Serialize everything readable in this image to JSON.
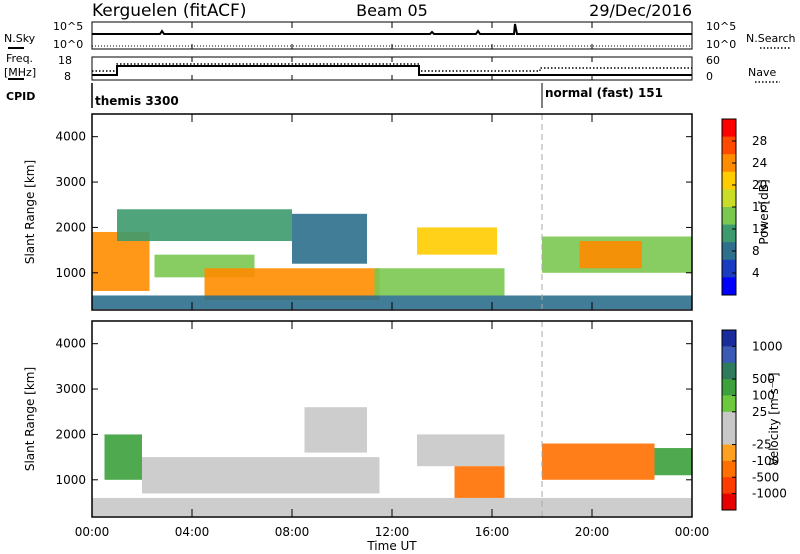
{
  "header": {
    "station": "Kerguelen (fitACF)",
    "beam": "Beam 05",
    "date": "29/Dec/2016"
  },
  "status_panels": {
    "nsky_label": "N.Sky",
    "nsky_ticks": [
      "10^5",
      "10^0"
    ],
    "nsearch_label": "N.Search",
    "nsearch_ticks": [
      "10^5",
      "10^0"
    ],
    "freq_label_1": "Freq.",
    "freq_label_2": "[MHz]",
    "freq_ticks": [
      "18",
      "8"
    ],
    "nave_label": "Nave",
    "nave_ticks": [
      "60",
      "0"
    ],
    "cpid_label": "CPID",
    "cpid_segments": [
      {
        "name": "themis 3300",
        "start_hour": 0
      },
      {
        "name": "normal (fast) 151",
        "start_hour": 18
      }
    ]
  },
  "axes": {
    "x_label": "Time UT",
    "x_ticks": [
      "00:00",
      "04:00",
      "08:00",
      "12:00",
      "16:00",
      "20:00",
      "00:00"
    ],
    "y_label": "Slant Range [km]",
    "y_ticks": [
      "4000",
      "3000",
      "2000",
      "1000"
    ]
  },
  "power_colorbar": {
    "label": "Power [dB]",
    "ticks": [
      "28",
      "24",
      "20",
      "16",
      "12",
      "8",
      "4"
    ],
    "colors": [
      "#ff0000",
      "#ff4a00",
      "#ff8c00",
      "#ffcc00",
      "#c8dc28",
      "#7ac850",
      "#3c9a6e",
      "#2d6f8c",
      "#1a3cc0",
      "#0000ff"
    ]
  },
  "velocity_colorbar": {
    "label": "Velocity [m s⁻¹]",
    "ticks": [
      "1000",
      "500",
      "100",
      "25",
      "-25",
      "-100",
      "-500",
      "-1000"
    ],
    "colors": [
      "#1a2c9c",
      "#3a5ab4",
      "#2e7a5c",
      "#3ca03c",
      "#6cc83c",
      "#c8c8c8",
      "#c8c8c8",
      "#ffa020",
      "#ff7000",
      "#ff3c00",
      "#e60000"
    ]
  },
  "chart_data": [
    {
      "type": "heatmap",
      "title": "Power [dB]",
      "xlabel": "Time UT",
      "ylabel": "Slant Range [km]",
      "xlim": [
        0,
        24
      ],
      "ylim": [
        180,
        4500
      ],
      "regions": [
        {
          "t0": 0.0,
          "t1": 2.3,
          "r0": 600,
          "r1": 1900,
          "value": 24
        },
        {
          "t0": 1.0,
          "t1": 8.0,
          "r0": 1700,
          "r1": 2400,
          "value": 12
        },
        {
          "t0": 2.5,
          "t1": 6.5,
          "r0": 900,
          "r1": 1400,
          "value": 16
        },
        {
          "t0": 4.5,
          "t1": 11.5,
          "r0": 400,
          "r1": 1100,
          "value": 24
        },
        {
          "t0": 8.0,
          "t1": 11.0,
          "r0": 1200,
          "r1": 2300,
          "value": 10
        },
        {
          "t0": 13.0,
          "t1": 16.2,
          "r0": 1400,
          "r1": 2000,
          "value": 20
        },
        {
          "t0": 11.3,
          "t1": 16.5,
          "r0": 500,
          "r1": 1100,
          "value": 14
        },
        {
          "t0": 18.0,
          "t1": 24.0,
          "r0": 1000,
          "r1": 1800,
          "value": 16
        },
        {
          "t0": 19.5,
          "t1": 22.0,
          "r0": 1100,
          "r1": 1700,
          "value": 24
        },
        {
          "t0": 0.0,
          "t1": 24.0,
          "r0": 200,
          "r1": 500,
          "value": 10
        }
      ]
    },
    {
      "type": "heatmap",
      "title": "Velocity [m s⁻¹]",
      "xlabel": "Time UT",
      "ylabel": "Slant Range [km]",
      "xlim": [
        0,
        24
      ],
      "ylim": [
        180,
        4500
      ],
      "regions": [
        {
          "t0": 0.5,
          "t1": 2.0,
          "r0": 1000,
          "r1": 2000,
          "value": 60
        },
        {
          "t0": 2.0,
          "t1": 11.5,
          "r0": 700,
          "r1": 1500,
          "value": 0
        },
        {
          "t0": 8.5,
          "t1": 11.0,
          "r0": 1600,
          "r1": 2600,
          "value": 0
        },
        {
          "t0": 13.0,
          "t1": 16.5,
          "r0": 1300,
          "r1": 2000,
          "value": 0
        },
        {
          "t0": 14.5,
          "t1": 16.5,
          "r0": 600,
          "r1": 1300,
          "value": -150
        },
        {
          "t0": 18.0,
          "t1": 22.5,
          "r0": 1000,
          "r1": 1800,
          "value": -150
        },
        {
          "t0": 22.5,
          "t1": 24.0,
          "r0": 1100,
          "r1": 1700,
          "value": 60
        },
        {
          "t0": 0.0,
          "t1": 24.0,
          "r0": 200,
          "r1": 600,
          "value": 0
        }
      ]
    }
  ]
}
